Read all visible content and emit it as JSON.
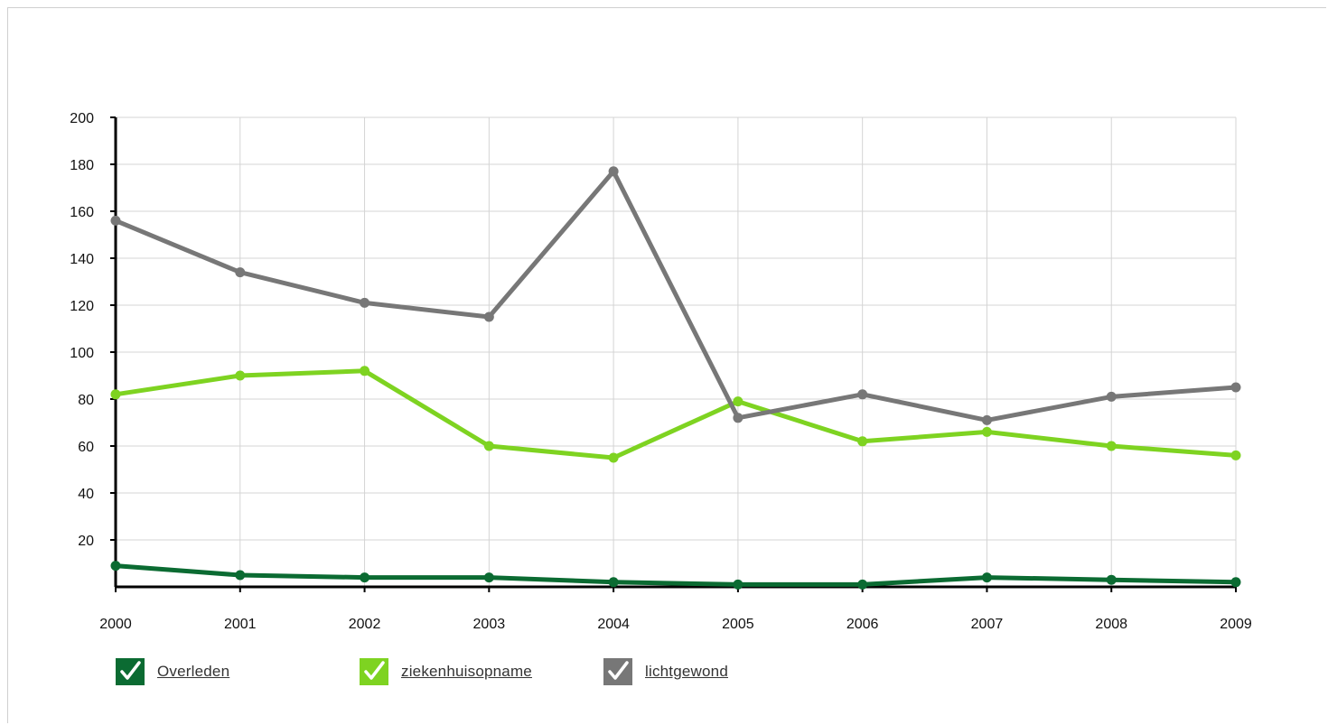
{
  "chart_data": {
    "type": "line",
    "x": [
      "2000",
      "2001",
      "2002",
      "2003",
      "2004",
      "2005",
      "2006",
      "2007",
      "2008",
      "2009"
    ],
    "ylim": [
      0,
      200
    ],
    "yticks": [
      "20",
      "40",
      "60",
      "80",
      "100",
      "120",
      "140",
      "160",
      "180",
      "200"
    ],
    "grid": true,
    "legend_position": "bottom-left",
    "series": [
      {
        "name": "Overleden",
        "color": "#0b6b32",
        "values": [
          9,
          5,
          4,
          4,
          2,
          1,
          1,
          4,
          3,
          2
        ]
      },
      {
        "name": "ziekenhuisopname",
        "color": "#7ed321",
        "values": [
          82,
          90,
          92,
          60,
          55,
          79,
          62,
          66,
          60,
          56
        ]
      },
      {
        "name": "lichtgewond",
        "color": "#777777",
        "values": [
          156,
          134,
          121,
          115,
          177,
          72,
          82,
          71,
          81,
          85
        ]
      }
    ]
  },
  "legend": {
    "items": [
      {
        "label": "Overleden",
        "color": "#0b6b32",
        "checkbox_icon": "check-icon"
      },
      {
        "label": "ziekenhuisopname",
        "color": "#7ed321",
        "checkbox_icon": "check-icon"
      },
      {
        "label": "lichtgewond",
        "color": "#777777",
        "checkbox_icon": "check-icon"
      }
    ]
  }
}
